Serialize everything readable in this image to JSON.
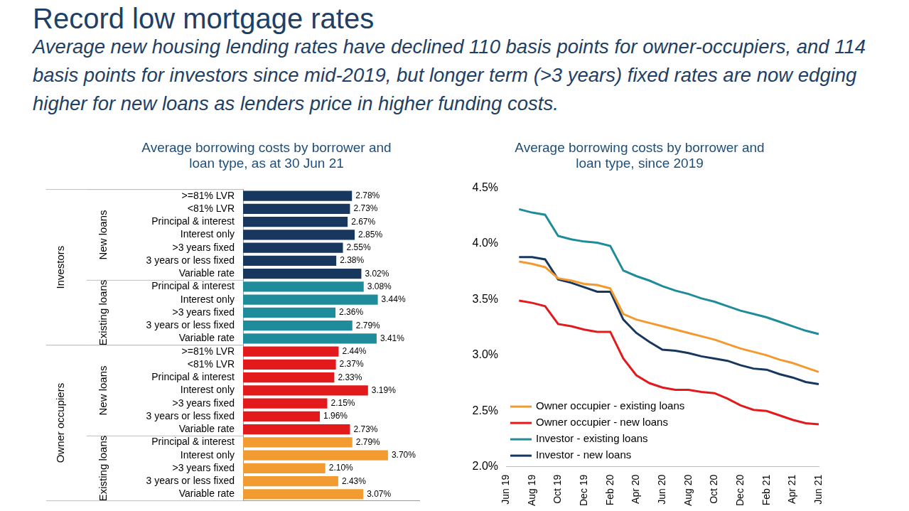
{
  "header": {
    "title": "Record low mortgage rates",
    "subtitle": "Average new housing lending rates have declined 110 basis points for owner-occupiers, and 114 basis points for investors since mid-2019, but longer term (>3 years) fixed rates are now edging higher for new loans as lenders price in higher funding costs."
  },
  "chart_data": [
    {
      "type": "bar",
      "orientation": "horizontal",
      "title": [
        "Average borrowing costs by borrower and",
        "loan type, as at 30 Jun 21"
      ],
      "categories": [
        ">=81% LVR",
        "<81% LVR",
        "Principal & interest",
        "Interest only",
        ">3 years fixed",
        "3 years or less fixed",
        "Variable rate",
        "Principal & interest",
        "Interest only",
        ">3 years fixed",
        "3 years or less fixed",
        "Variable rate",
        ">=81% LVR",
        "<81% LVR",
        "Principal & interest",
        "Interest only",
        ">3 years fixed",
        "3 years or less fixed",
        "Variable rate",
        "Principal & interest",
        "Interest only",
        ">3 years fixed",
        "3 years or less fixed",
        "Variable rate"
      ],
      "group": [
        "Investors",
        "Investors",
        "Investors",
        "Investors",
        "Investors",
        "Investors",
        "Investors",
        "Investors",
        "Investors",
        "Investors",
        "Investors",
        "Investors",
        "Owner occupiers",
        "Owner occupiers",
        "Owner occupiers",
        "Owner occupiers",
        "Owner occupiers",
        "Owner occupiers",
        "Owner occupiers",
        "Owner occupiers",
        "Owner occupiers",
        "Owner occupiers",
        "Owner occupiers",
        "Owner occupiers"
      ],
      "subgroup": [
        "New loans",
        "New loans",
        "New loans",
        "New loans",
        "New loans",
        "New loans",
        "New loans",
        "Existing loans",
        "Existing loans",
        "Existing loans",
        "Existing loans",
        "Existing loans",
        "New loans",
        "New loans",
        "New loans",
        "New loans",
        "New loans",
        "New loans",
        "New loans",
        "Existing loans",
        "Existing loans",
        "Existing loans",
        "Existing loans",
        "Existing loans"
      ],
      "values": [
        2.78,
        2.73,
        2.67,
        2.85,
        2.55,
        2.38,
        3.02,
        3.08,
        3.44,
        2.36,
        2.79,
        3.41,
        2.44,
        2.37,
        2.33,
        3.19,
        2.15,
        1.96,
        2.73,
        2.79,
        3.7,
        2.1,
        2.43,
        3.07
      ],
      "value_labels": [
        "2.78%",
        "2.73%",
        "2.67%",
        "2.85%",
        "2.55%",
        "2.38%",
        "3.02%",
        "3.08%",
        "3.44%",
        "2.36%",
        "2.79%",
        "3.41%",
        "2.44%",
        "2.37%",
        "2.33%",
        "3.19%",
        "2.15%",
        "1.96%",
        "2.73%",
        "2.79%",
        "3.70%",
        "2.10%",
        "2.43%",
        "3.07%"
      ],
      "colors": [
        "#17375e",
        "#17375e",
        "#17375e",
        "#17375e",
        "#17375e",
        "#17375e",
        "#17375e",
        "#1f8c9c",
        "#1f8c9c",
        "#1f8c9c",
        "#1f8c9c",
        "#1f8c9c",
        "#e31a1c",
        "#e31a1c",
        "#e31a1c",
        "#e31a1c",
        "#e31a1c",
        "#e31a1c",
        "#e31a1c",
        "#f29b30",
        "#f29b30",
        "#f29b30",
        "#f29b30",
        "#f29b30"
      ],
      "xlim": [
        0,
        4.5
      ],
      "data_labels": true,
      "tick_labels": "y",
      "grid": false
    },
    {
      "type": "line",
      "title": [
        "Average borrowing costs by borrower and",
        "loan type, since 2019"
      ],
      "categories": [
        "Jun 19",
        null,
        "Aug 19",
        null,
        "Oct 19",
        null,
        "Dec 19",
        null,
        "Feb 20",
        null,
        "Apr 20",
        null,
        "Jun 20",
        null,
        "Aug 20",
        null,
        "Oct 20",
        null,
        "Dec 20",
        null,
        "Feb 21",
        null,
        "Apr 21",
        null,
        "Jun 21"
      ],
      "series": [
        {
          "name": "Owner occupier - existing loans",
          "color": "#f39a2f",
          "values": [
            null,
            3.84,
            3.82,
            3.79,
            3.69,
            3.67,
            3.64,
            3.63,
            3.6,
            3.37,
            3.32,
            3.29,
            3.26,
            3.23,
            3.2,
            3.17,
            3.14,
            3.1,
            3.06,
            3.03,
            3.0,
            2.96,
            2.93,
            2.89,
            2.85
          ]
        },
        {
          "name": "Owner occupier - new loans",
          "color": "#e31a1c",
          "values": [
            null,
            3.49,
            3.47,
            3.44,
            3.28,
            3.26,
            3.23,
            3.21,
            3.21,
            2.97,
            2.82,
            2.75,
            2.71,
            2.69,
            2.69,
            2.67,
            2.66,
            2.61,
            2.55,
            2.51,
            2.5,
            2.46,
            2.42,
            2.39,
            2.38
          ]
        },
        {
          "name": "Investor - existing loans",
          "color": "#1f8c9c",
          "values": [
            null,
            4.31,
            4.28,
            4.26,
            4.07,
            4.04,
            4.02,
            4.01,
            3.98,
            3.76,
            3.71,
            3.67,
            3.62,
            3.58,
            3.55,
            3.51,
            3.48,
            3.44,
            3.4,
            3.37,
            3.34,
            3.3,
            3.26,
            3.22,
            3.19
          ]
        },
        {
          "name": "Investor - new loans",
          "color": "#17375e",
          "values": [
            null,
            3.88,
            3.88,
            3.86,
            3.68,
            3.65,
            3.61,
            3.57,
            3.57,
            3.32,
            3.2,
            3.12,
            3.05,
            3.04,
            3.02,
            2.99,
            2.97,
            2.95,
            2.91,
            2.88,
            2.87,
            2.83,
            2.8,
            2.76,
            2.74
          ]
        }
      ],
      "ylim": [
        2,
        4.5
      ],
      "yticks": [
        {
          "value": 2,
          "label": "2.0%"
        },
        {
          "value": 2.5,
          "label": "2.5%"
        },
        {
          "value": 3,
          "label": "3.0%"
        },
        {
          "value": 3.5,
          "label": "3.5%"
        },
        {
          "value": 4,
          "label": "4.0%"
        },
        {
          "value": 4.5,
          "label": "4.5%"
        }
      ],
      "grid": false,
      "legend": "bottom left",
      "marker": "none",
      "line_style": "solid"
    }
  ]
}
